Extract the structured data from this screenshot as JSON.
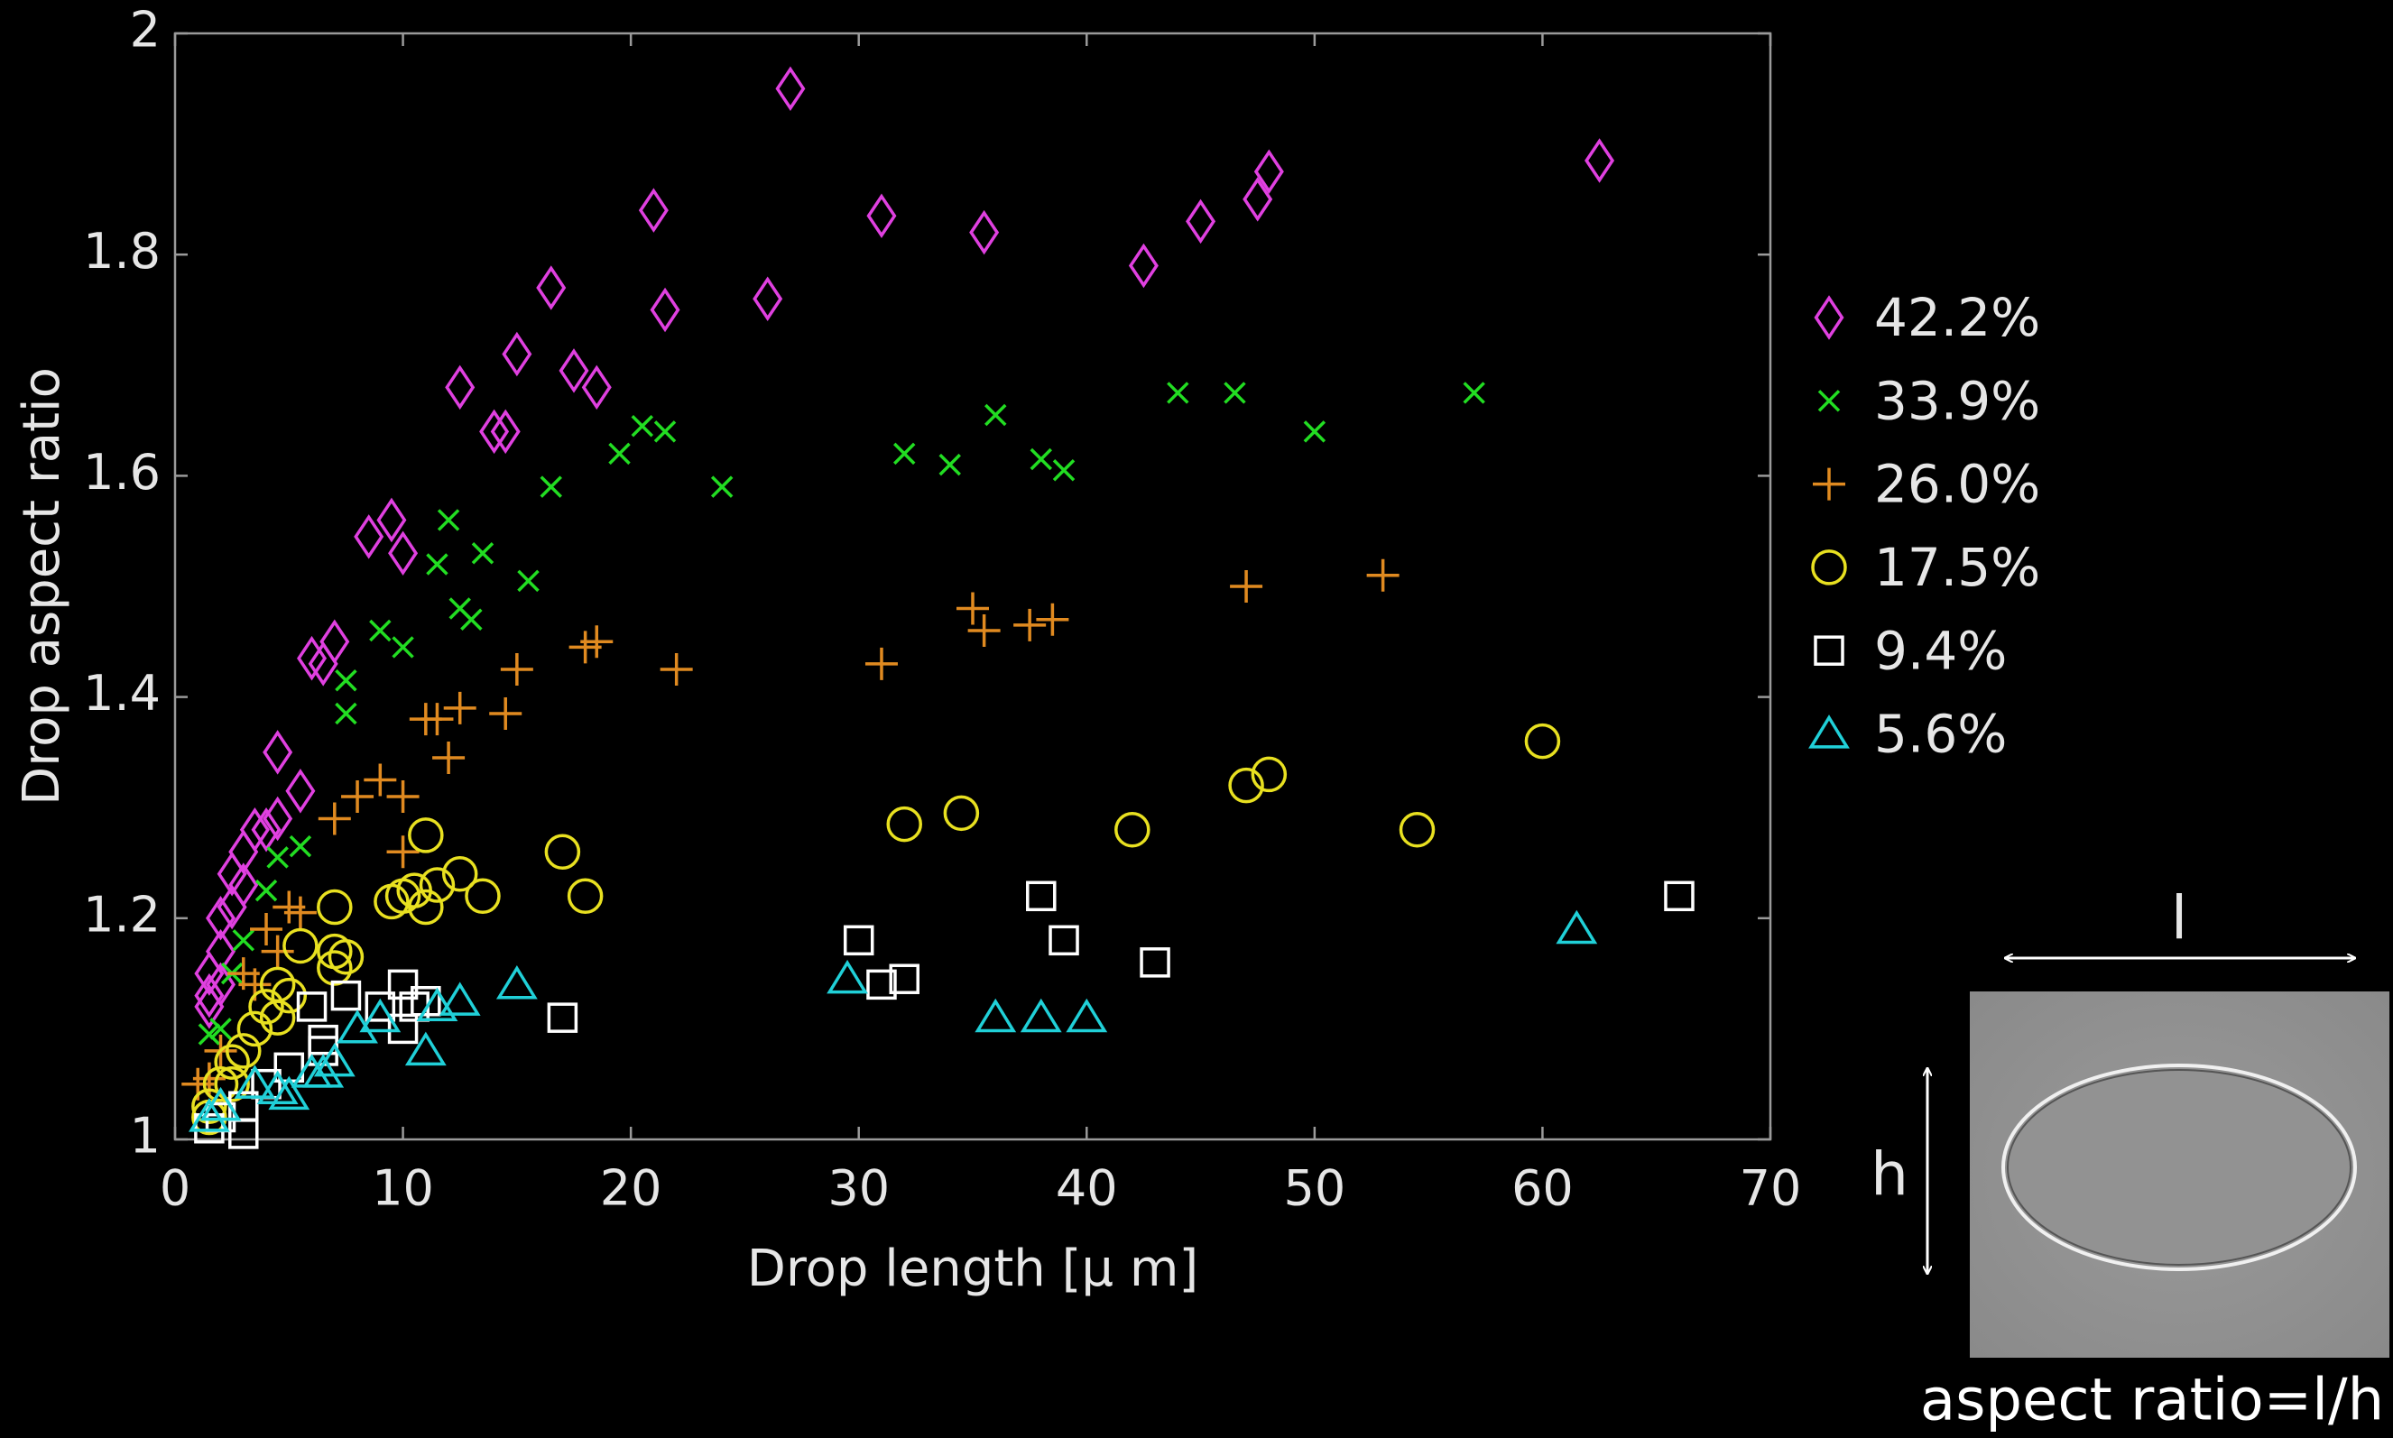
{
  "chart_data": {
    "type": "scatter",
    "xlabel": "Drop length [μ m]",
    "ylabel": "Drop aspect ratio",
    "xlim": [
      0,
      70
    ],
    "xticks": [
      0,
      10,
      20,
      30,
      40,
      50,
      60,
      70
    ],
    "ylim": [
      1,
      2
    ],
    "yticks": [
      1,
      1.2,
      1.4,
      1.6,
      1.8,
      2
    ],
    "series": [
      {
        "name": "42.2%",
        "color": "#e040e0",
        "marker": "diamond",
        "x": [
          62.5,
          27,
          21,
          31,
          35.5,
          47.5,
          48,
          45,
          42.5,
          26,
          21.5,
          16.5,
          12.5,
          15,
          17.5,
          18.5,
          14,
          14.5,
          9.5,
          10,
          8.5,
          6,
          7,
          6.5,
          4.5,
          5.5,
          3.5,
          4,
          4.5,
          3,
          2.5,
          3,
          2,
          2.5,
          2,
          1.5,
          1.5,
          2,
          1.5
        ],
        "values": [
          1.885,
          1.95,
          1.84,
          1.835,
          1.82,
          1.85,
          1.875,
          1.83,
          1.79,
          1.76,
          1.75,
          1.77,
          1.68,
          1.71,
          1.695,
          1.68,
          1.64,
          1.64,
          1.56,
          1.53,
          1.545,
          1.435,
          1.45,
          1.43,
          1.35,
          1.315,
          1.28,
          1.28,
          1.29,
          1.26,
          1.24,
          1.23,
          1.2,
          1.21,
          1.17,
          1.15,
          1.12,
          1.14,
          1.13
        ]
      },
      {
        "name": "33.9%",
        "color": "#22dd22",
        "marker": "x",
        "x": [
          57,
          44,
          46.5,
          50,
          36,
          32,
          34,
          38,
          39,
          24,
          20.5,
          21.5,
          19.5,
          16.5,
          12,
          11.5,
          13.5,
          15.5,
          12.5,
          13,
          9,
          10,
          7.5,
          7.5,
          5.5,
          4,
          4.5,
          3,
          2.5,
          1.5,
          2
        ],
        "values": [
          1.675,
          1.675,
          1.675,
          1.64,
          1.655,
          1.62,
          1.61,
          1.615,
          1.605,
          1.59,
          1.645,
          1.64,
          1.62,
          1.59,
          1.56,
          1.52,
          1.53,
          1.505,
          1.48,
          1.47,
          1.46,
          1.445,
          1.415,
          1.385,
          1.265,
          1.225,
          1.255,
          1.18,
          1.15,
          1.095,
          1.1
        ]
      },
      {
        "name": "26.0%",
        "color": "#e08a20",
        "marker": "plus",
        "x": [
          53,
          47,
          35,
          35.5,
          37.5,
          38.5,
          31,
          22,
          18,
          18.5,
          15,
          14.5,
          12.5,
          11.5,
          11,
          12,
          10,
          9,
          8,
          7,
          10,
          5,
          5.5,
          4,
          4.5,
          3,
          3.5,
          2,
          1.5,
          1
        ],
        "values": [
          1.51,
          1.5,
          1.48,
          1.46,
          1.465,
          1.47,
          1.43,
          1.425,
          1.445,
          1.45,
          1.425,
          1.385,
          1.39,
          1.38,
          1.38,
          1.345,
          1.31,
          1.325,
          1.31,
          1.29,
          1.26,
          1.21,
          1.205,
          1.19,
          1.17,
          1.15,
          1.14,
          1.08,
          1.055,
          1.05
        ]
      },
      {
        "name": "17.5%",
        "color": "#e8e020",
        "marker": "circle",
        "x": [
          60,
          54.5,
          48,
          47,
          42,
          34.5,
          32,
          18,
          17,
          13.5,
          12.5,
          11.5,
          11,
          11,
          10,
          10.5,
          9.5,
          7,
          7,
          7.5,
          7,
          5.5,
          4.5,
          5,
          4,
          4.5,
          3.5,
          3,
          2.5,
          2,
          1.5,
          1.5,
          2.5
        ],
        "values": [
          1.36,
          1.28,
          1.33,
          1.32,
          1.28,
          1.295,
          1.285,
          1.22,
          1.26,
          1.22,
          1.24,
          1.23,
          1.275,
          1.21,
          1.22,
          1.225,
          1.215,
          1.21,
          1.17,
          1.165,
          1.155,
          1.175,
          1.14,
          1.13,
          1.12,
          1.11,
          1.1,
          1.08,
          1.07,
          1.05,
          1.03,
          1.02,
          1.05
        ]
      },
      {
        "name": "9.4%",
        "color": "#ffffff",
        "marker": "square",
        "x": [
          66,
          38,
          30,
          39,
          43,
          31,
          32,
          17,
          10,
          9,
          6,
          7.5,
          10.5,
          11,
          10,
          6.5,
          6.5,
          5,
          4,
          3,
          3,
          1.5,
          2
        ],
        "values": [
          1.22,
          1.22,
          1.18,
          1.18,
          1.16,
          1.14,
          1.145,
          1.11,
          1.14,
          1.12,
          1.12,
          1.13,
          1.12,
          1.125,
          1.1,
          1.08,
          1.09,
          1.065,
          1.05,
          1.03,
          1.005,
          1.01,
          1.02
        ]
      },
      {
        "name": "5.6%",
        "color": "#20d0d8",
        "marker": "triangle",
        "x": [
          61.5,
          29.5,
          40,
          38,
          36,
          15,
          12.5,
          11,
          11.5,
          9,
          8,
          7,
          6.5,
          6,
          5,
          4.5,
          3.5,
          2,
          1.5
        ],
        "values": [
          1.19,
          1.145,
          1.11,
          1.11,
          1.11,
          1.14,
          1.125,
          1.08,
          1.12,
          1.11,
          1.1,
          1.07,
          1.06,
          1.06,
          1.04,
          1.045,
          1.05,
          1.03,
          1.02
        ]
      }
    ]
  },
  "inset": {
    "width_label": "l",
    "height_label": "h",
    "caption": "aspect ratio=l/h"
  }
}
